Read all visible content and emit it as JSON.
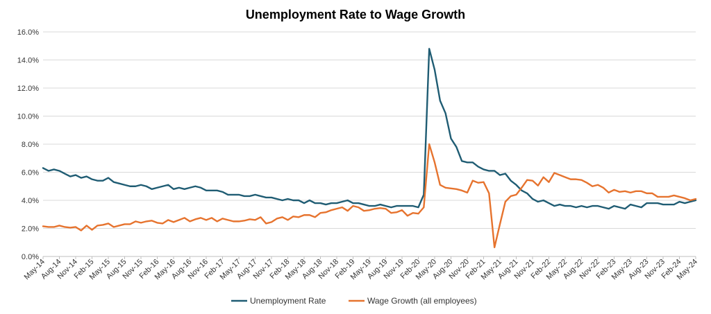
{
  "chart_data": {
    "type": "line",
    "title": "Unemployment Rate to Wage Growth",
    "xlabel": "",
    "ylabel": "",
    "ylim": [
      0,
      16
    ],
    "y_ticks": [
      "0.0%",
      "2.0%",
      "4.0%",
      "6.0%",
      "8.0%",
      "10.0%",
      "12.0%",
      "14.0%",
      "16.0%"
    ],
    "y_tick_values": [
      0,
      2,
      4,
      6,
      8,
      10,
      12,
      14,
      16
    ],
    "grid": "horizontal",
    "legend_position": "bottom",
    "x_tick_labels": [
      "May-14",
      "Aug-14",
      "Nov-14",
      "Feb-15",
      "May-15",
      "Aug-15",
      "Nov-15",
      "Feb-16",
      "May-16",
      "Aug-16",
      "Nov-16",
      "Feb-17",
      "May-17",
      "Aug-17",
      "Nov-17",
      "Feb-18",
      "May-18",
      "Aug-18",
      "Nov-18",
      "Feb-19",
      "May-19",
      "Aug-19",
      "Nov-19",
      "Feb-20",
      "May-20",
      "Aug-20",
      "Nov-20",
      "Feb-21",
      "May-21",
      "Aug-21",
      "Nov-21",
      "Feb-22",
      "May-22",
      "Aug-22",
      "Nov-22",
      "Feb-23",
      "May-23",
      "Aug-23",
      "Nov-23",
      "Feb-24",
      "May-24"
    ],
    "x_start": "May-14",
    "x_end": "May-24",
    "series": [
      {
        "name": "Unemployment Rate",
        "color": "#1f5c73",
        "values": [
          6.3,
          6.1,
          6.2,
          6.1,
          5.9,
          5.7,
          5.8,
          5.6,
          5.7,
          5.5,
          5.4,
          5.4,
          5.6,
          5.3,
          5.2,
          5.1,
          5.0,
          5.0,
          5.1,
          5.0,
          4.8,
          4.9,
          5.0,
          5.1,
          4.8,
          4.9,
          4.8,
          4.9,
          5.0,
          4.9,
          4.7,
          4.7,
          4.7,
          4.6,
          4.4,
          4.4,
          4.4,
          4.3,
          4.3,
          4.4,
          4.3,
          4.2,
          4.2,
          4.1,
          4.0,
          4.1,
          4.0,
          4.0,
          3.8,
          4.0,
          3.8,
          3.8,
          3.7,
          3.8,
          3.8,
          3.9,
          4.0,
          3.8,
          3.8,
          3.7,
          3.6,
          3.6,
          3.7,
          3.6,
          3.5,
          3.6,
          3.6,
          3.6,
          3.6,
          3.5,
          4.4,
          14.8,
          13.3,
          11.1,
          10.2,
          8.4,
          7.8,
          6.8,
          6.7,
          6.7,
          6.4,
          6.2,
          6.1,
          6.1,
          5.8,
          5.9,
          5.4,
          5.1,
          4.7,
          4.5,
          4.1,
          3.9,
          4.0,
          3.8,
          3.6,
          3.7,
          3.6,
          3.6,
          3.5,
          3.6,
          3.5,
          3.6,
          3.6,
          3.5,
          3.4,
          3.6,
          3.5,
          3.4,
          3.7,
          3.6,
          3.5,
          3.8,
          3.8,
          3.8,
          3.7,
          3.7,
          3.7,
          3.9,
          3.8,
          3.9,
          4.0
        ]
      },
      {
        "name": "Wage Growth (all employees)",
        "color": "#e6732e",
        "values": [
          2.15,
          2.1,
          2.1,
          2.2,
          2.1,
          2.05,
          2.1,
          1.85,
          2.2,
          1.9,
          2.2,
          2.25,
          2.35,
          2.1,
          2.2,
          2.3,
          2.3,
          2.5,
          2.4,
          2.5,
          2.55,
          2.4,
          2.35,
          2.6,
          2.45,
          2.6,
          2.75,
          2.5,
          2.65,
          2.75,
          2.6,
          2.75,
          2.5,
          2.7,
          2.6,
          2.5,
          2.5,
          2.55,
          2.65,
          2.6,
          2.8,
          2.35,
          2.45,
          2.7,
          2.8,
          2.6,
          2.85,
          2.8,
          2.95,
          2.95,
          2.8,
          3.1,
          3.15,
          3.3,
          3.4,
          3.5,
          3.25,
          3.6,
          3.5,
          3.25,
          3.3,
          3.4,
          3.45,
          3.4,
          3.1,
          3.15,
          3.3,
          2.9,
          3.1,
          3.05,
          3.5,
          8.0,
          6.7,
          5.1,
          4.9,
          4.85,
          4.8,
          4.7,
          4.55,
          5.4,
          5.25,
          5.3,
          4.5,
          0.65,
          2.3,
          3.9,
          4.3,
          4.4,
          4.9,
          5.45,
          5.4,
          5.05,
          5.65,
          5.3,
          5.95,
          5.8,
          5.65,
          5.5,
          5.5,
          5.45,
          5.25,
          5.0,
          5.1,
          4.9,
          4.55,
          4.75,
          4.6,
          4.65,
          4.55,
          4.65,
          4.65,
          4.5,
          4.5,
          4.25,
          4.25,
          4.25,
          4.35,
          4.25,
          4.15,
          4.0,
          4.1
        ]
      }
    ]
  }
}
